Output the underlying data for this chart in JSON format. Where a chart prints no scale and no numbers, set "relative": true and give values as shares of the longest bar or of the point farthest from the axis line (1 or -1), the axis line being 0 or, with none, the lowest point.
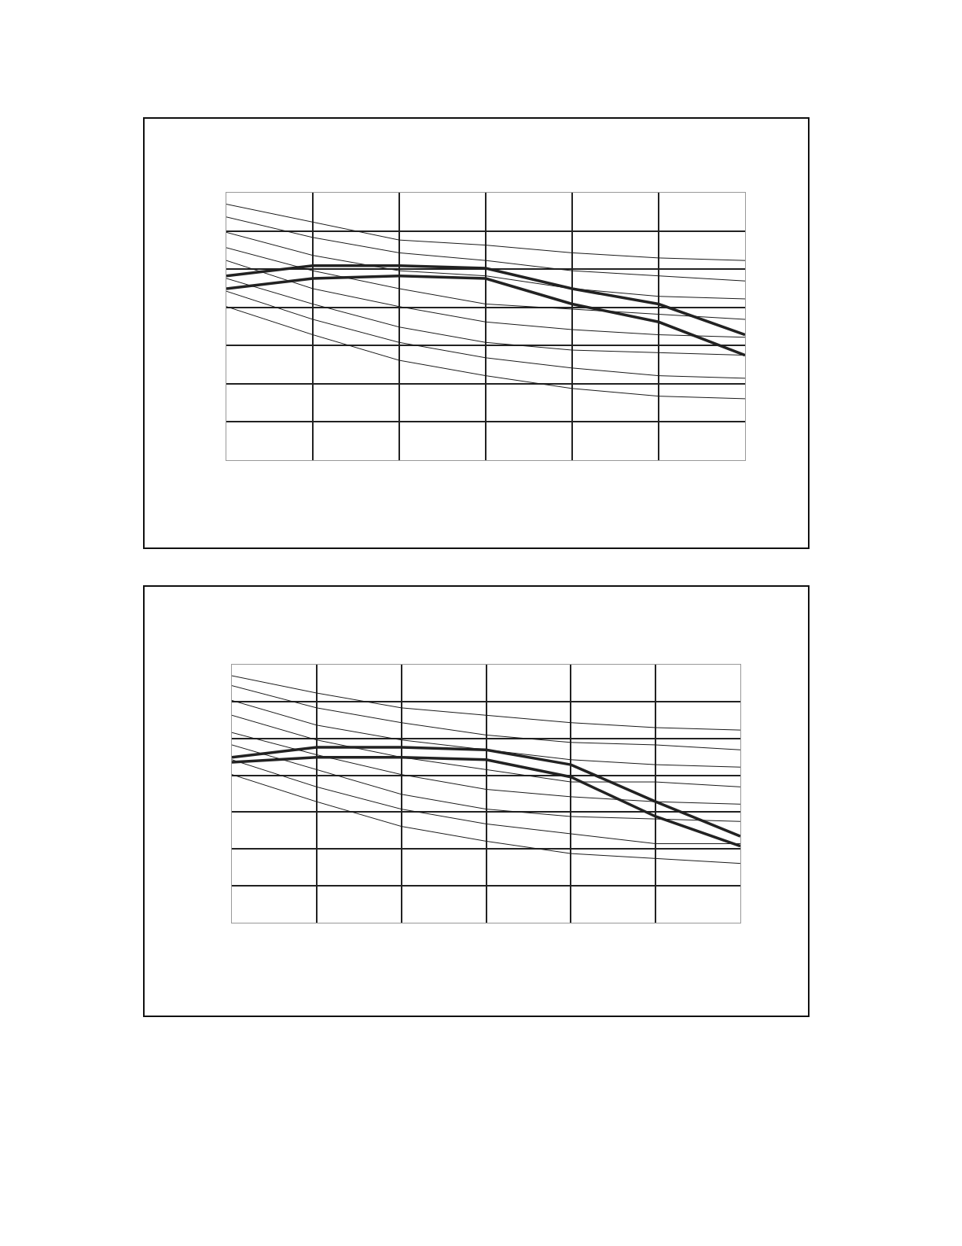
{
  "chart_data": [
    {
      "type": "line",
      "relative": true,
      "grid": true,
      "marker": "none",
      "line_style": "solid",
      "categories": [
        null,
        null,
        null,
        null,
        null,
        null,
        null
      ],
      "series": [
        {
          "color": "#1a1a1a",
          "values": [
            1.0,
            0.93,
            0.86,
            0.84,
            0.81,
            0.79,
            0.78
          ]
        },
        {
          "color": "#1a1a1a",
          "values": [
            0.95,
            0.87,
            0.81,
            0.78,
            0.74,
            0.72,
            0.7
          ]
        },
        {
          "color": "#1a1a1a",
          "values": [
            0.89,
            0.8,
            0.74,
            0.72,
            0.67,
            0.64,
            0.63
          ]
        },
        {
          "color": "#1a1a1a",
          "values": [
            0.83,
            0.74,
            0.67,
            0.61,
            0.59,
            0.57,
            0.55
          ]
        },
        {
          "color": "#1a1a1a",
          "values": [
            0.78,
            0.67,
            0.6,
            0.54,
            0.51,
            0.49,
            0.48
          ]
        },
        {
          "color": "#1a1a1a",
          "values": [
            0.71,
            0.61,
            0.52,
            0.46,
            0.43,
            0.42,
            0.41
          ]
        },
        {
          "color": "#1a1a1a",
          "values": [
            0.66,
            0.55,
            0.46,
            0.4,
            0.36,
            0.33,
            0.32
          ]
        },
        {
          "color": "#1a1a1a",
          "values": [
            0.6,
            0.49,
            0.39,
            0.33,
            0.28,
            0.25,
            0.24
          ]
        },
        {
          "color": "#222222",
          "values": [
            0.72,
            0.76,
            0.76,
            0.75,
            0.67,
            0.61,
            0.49
          ]
        },
        {
          "color": "#222222",
          "values": [
            0.67,
            0.71,
            0.72,
            0.71,
            0.61,
            0.54,
            0.41
          ]
        }
      ]
    },
    {
      "type": "line",
      "relative": true,
      "grid": true,
      "marker": "none",
      "line_style": "solid",
      "categories": [
        null,
        null,
        null,
        null,
        null,
        null,
        null
      ],
      "series": [
        {
          "color": "#1a1a1a",
          "values": [
            1.0,
            0.93,
            0.87,
            0.84,
            0.81,
            0.79,
            0.78
          ]
        },
        {
          "color": "#1a1a1a",
          "values": [
            0.96,
            0.87,
            0.81,
            0.76,
            0.73,
            0.72,
            0.7
          ]
        },
        {
          "color": "#1a1a1a",
          "values": [
            0.9,
            0.8,
            0.74,
            0.7,
            0.66,
            0.64,
            0.63
          ]
        },
        {
          "color": "#1a1a1a",
          "values": [
            0.84,
            0.74,
            0.67,
            0.62,
            0.57,
            0.57,
            0.55
          ]
        },
        {
          "color": "#1a1a1a",
          "values": [
            0.77,
            0.68,
            0.6,
            0.54,
            0.51,
            0.49,
            0.48
          ]
        },
        {
          "color": "#1a1a1a",
          "values": [
            0.72,
            0.62,
            0.52,
            0.46,
            0.43,
            0.42,
            0.41
          ]
        },
        {
          "color": "#1a1a1a",
          "values": [
            0.66,
            0.55,
            0.46,
            0.4,
            0.36,
            0.32,
            0.32
          ]
        },
        {
          "color": "#1a1a1a",
          "values": [
            0.6,
            0.49,
            0.39,
            0.33,
            0.28,
            0.26,
            0.24
          ]
        },
        {
          "color": "#222222",
          "values": [
            0.67,
            0.71,
            0.71,
            0.7,
            0.64,
            0.49,
            0.35
          ]
        },
        {
          "color": "#222222",
          "values": [
            0.65,
            0.67,
            0.67,
            0.66,
            0.59,
            0.43,
            0.31
          ]
        }
      ]
    }
  ]
}
